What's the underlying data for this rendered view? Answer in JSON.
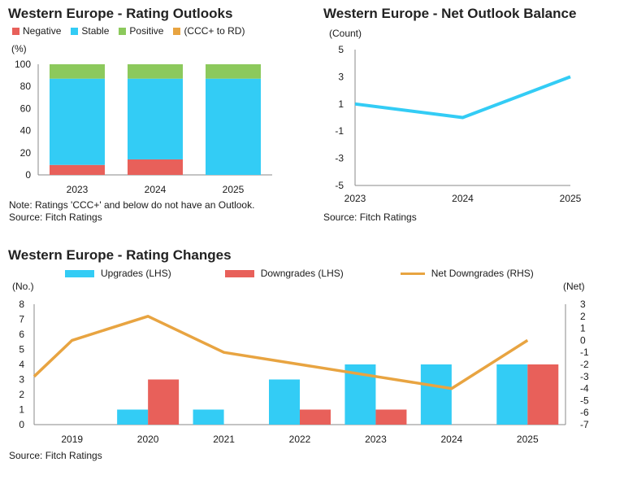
{
  "charts": {
    "outlooks": {
      "title": "Western Europe - Rating Outlooks",
      "legend": [
        {
          "label": "Negative",
          "color": "#e8605a"
        },
        {
          "label": "Stable",
          "color": "#33ccf5"
        },
        {
          "label": "Positive",
          "color": "#8cc95c"
        },
        {
          "label": "(CCC+ to RD)",
          "color": "#e8a441"
        }
      ],
      "unit": "(%)",
      "note": "Note: Ratings 'CCC+' and below do not have an Outlook.",
      "source": "Source: Fitch Ratings"
    },
    "balance": {
      "title": "Western Europe - Net Outlook Balance",
      "unit": "(Count)",
      "source": "Source: Fitch Ratings"
    },
    "changes": {
      "title": "Western Europe - Rating Changes",
      "legend": [
        {
          "label": "Upgrades (LHS)",
          "color": "#33ccf5",
          "kind": "box"
        },
        {
          "label": "Downgrades (LHS)",
          "color": "#e8605a",
          "kind": "box"
        },
        {
          "label": "Net Downgrades (RHS)",
          "color": "#e8a441",
          "kind": "line"
        }
      ],
      "unit_left": "(No.)",
      "unit_right": "(Net)",
      "source": "Source: Fitch Ratings"
    }
  },
  "chart_data": [
    {
      "type": "bar",
      "stacked": true,
      "title": "Western Europe - Rating Outlooks",
      "ylabel": "(%)",
      "ylim": [
        0,
        100
      ],
      "yticks": [
        0,
        20,
        40,
        60,
        80,
        100
      ],
      "categories": [
        "2023",
        "2024",
        "2025"
      ],
      "series": [
        {
          "name": "Negative",
          "color": "#e8605a",
          "values": [
            9,
            14,
            0
          ]
        },
        {
          "name": "Stable",
          "color": "#33ccf5",
          "values": [
            78,
            73,
            87
          ]
        },
        {
          "name": "Positive",
          "color": "#8cc95c",
          "values": [
            13,
            13,
            13
          ]
        },
        {
          "name": "(CCC+ to RD)",
          "color": "#e8a441",
          "values": [
            0,
            0,
            0
          ]
        }
      ],
      "grid": false,
      "legend_position": "top"
    },
    {
      "type": "line",
      "title": "Western Europe - Net Outlook Balance",
      "ylabel": "(Count)",
      "ylim": [
        -5,
        5
      ],
      "yticks": [
        -5,
        -3,
        -1,
        1,
        3,
        5
      ],
      "categories": [
        "2023",
        "2024",
        "2025"
      ],
      "series": [
        {
          "color": "#33ccf5",
          "values": [
            1,
            0,
            3
          ]
        }
      ],
      "grid": false
    },
    {
      "type": "bar",
      "title": "Western Europe - Rating Changes",
      "categories": [
        "2019",
        "2020",
        "2021",
        "2022",
        "2023",
        "2024",
        "2025"
      ],
      "ylabel": "(No.)",
      "ylim": [
        0,
        8
      ],
      "yticks": [
        0,
        1,
        2,
        3,
        4,
        5,
        6,
        7,
        8
      ],
      "y2label": "(Net)",
      "y2lim": [
        -7,
        3
      ],
      "y2ticks": [
        -7,
        -6,
        -5,
        -4,
        -3,
        -2,
        -1,
        0,
        1,
        2,
        3
      ],
      "series": [
        {
          "name": "Upgrades (LHS)",
          "color": "#33ccf5",
          "type": "bar",
          "axis": "left",
          "values": [
            0,
            1,
            1,
            3,
            4,
            4,
            4
          ]
        },
        {
          "name": "Downgrades (LHS)",
          "color": "#e8605a",
          "type": "bar",
          "axis": "left",
          "values": [
            0,
            3,
            0,
            1,
            1,
            0,
            4
          ]
        },
        {
          "name": "Net Downgrades (RHS)",
          "color": "#e8a441",
          "type": "line",
          "axis": "right",
          "values": [
            0,
            2,
            -1,
            -2,
            -3,
            -4,
            0
          ]
        }
      ],
      "line_start_value": -3,
      "grid": false,
      "legend_position": "top"
    }
  ]
}
